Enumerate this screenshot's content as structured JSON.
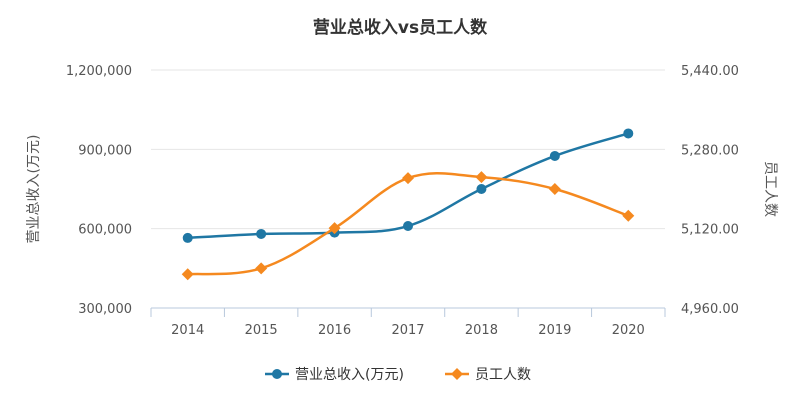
{
  "chart_data": {
    "type": "line",
    "title": "营业总收入vs员工人数",
    "categories": [
      "2014",
      "2015",
      "2016",
      "2017",
      "2018",
      "2019",
      "2020"
    ],
    "y_left": {
      "label": "营业总收入(万元)",
      "ylim": [
        300000,
        1200000
      ],
      "ticks": [
        300000,
        600000,
        900000,
        1200000
      ],
      "tick_labels": [
        "300,000",
        "600,000",
        "900,000",
        "1,200,000"
      ]
    },
    "y_right": {
      "label": "员工人数",
      "ylim": [
        4960,
        5440
      ],
      "ticks": [
        4960,
        5120,
        5280,
        5440
      ],
      "tick_labels": [
        "4,960.00",
        "5,120.00",
        "5,280.00",
        "5,440.00"
      ]
    },
    "series": [
      {
        "name": "营业总收入(万元)",
        "axis": "left",
        "color": "#1f77a4",
        "marker": "circle",
        "values": [
          565000,
          580000,
          585000,
          610000,
          750000,
          875000,
          960000
        ]
      },
      {
        "name": "员工人数",
        "axis": "right",
        "color": "#f5891f",
        "marker": "diamond",
        "values": [
          5028,
          5040,
          5121,
          5222,
          5224,
          5200,
          5146
        ]
      }
    ],
    "legend": "bottom-center",
    "grid": true
  }
}
